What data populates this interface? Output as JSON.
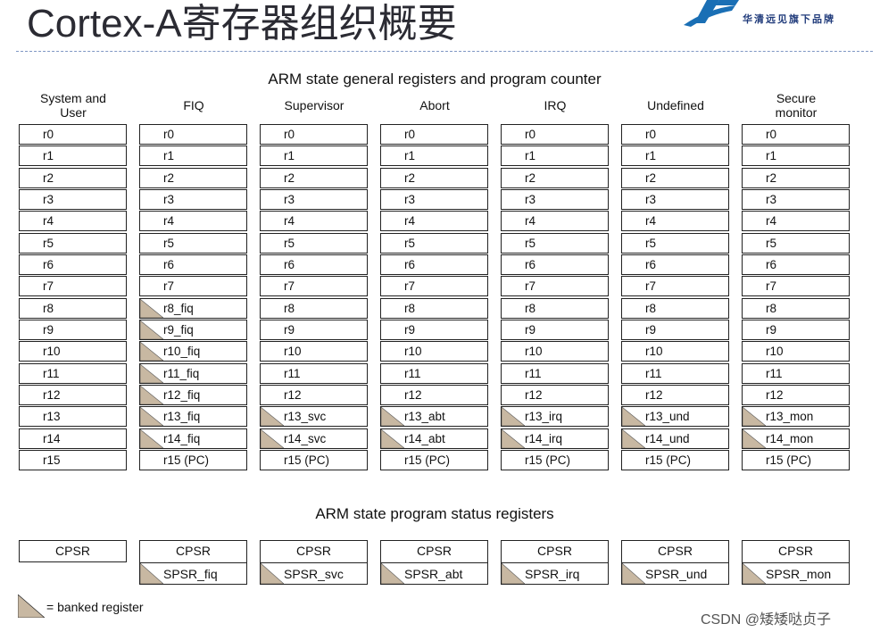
{
  "slide_title": "Cortex-A寄存器组织概要",
  "logo_text": "华清远见旗下品牌",
  "section1_title": "ARM state general registers and program counter",
  "section2_title": "ARM state program status registers",
  "legend_text": "= banked register",
  "watermark": "CSDN @矮矮哒贞子",
  "colors": {
    "banked_fill": "#c8b8a2",
    "border": "#222222",
    "title": "#2b2b33",
    "logo_blue": "#1a6fb5"
  },
  "modes": [
    {
      "header": [
        "System and",
        "User"
      ],
      "registers": [
        {
          "label": "r0",
          "banked": false
        },
        {
          "label": "r1",
          "banked": false
        },
        {
          "label": "r2",
          "banked": false
        },
        {
          "label": "r3",
          "banked": false
        },
        {
          "label": "r4",
          "banked": false
        },
        {
          "label": "r5",
          "banked": false
        },
        {
          "label": "r6",
          "banked": false
        },
        {
          "label": "r7",
          "banked": false
        },
        {
          "label": "r8",
          "banked": false
        },
        {
          "label": "r9",
          "banked": false
        },
        {
          "label": "r10",
          "banked": false
        },
        {
          "label": "r11",
          "banked": false
        },
        {
          "label": "r12",
          "banked": false
        },
        {
          "label": "r13",
          "banked": false
        },
        {
          "label": "r14",
          "banked": false
        },
        {
          "label": "r15",
          "banked": false
        }
      ],
      "cpsr": "CPSR",
      "spsr": null
    },
    {
      "header": [
        "FIQ"
      ],
      "registers": [
        {
          "label": "r0",
          "banked": false
        },
        {
          "label": "r1",
          "banked": false
        },
        {
          "label": "r2",
          "banked": false
        },
        {
          "label": "r3",
          "banked": false
        },
        {
          "label": "r4",
          "banked": false
        },
        {
          "label": "r5",
          "banked": false
        },
        {
          "label": "r6",
          "banked": false
        },
        {
          "label": "r7",
          "banked": false
        },
        {
          "label": "r8_fiq",
          "banked": true
        },
        {
          "label": "r9_fiq",
          "banked": true
        },
        {
          "label": "r10_fiq",
          "banked": true
        },
        {
          "label": "r11_fiq",
          "banked": true
        },
        {
          "label": "r12_fiq",
          "banked": true
        },
        {
          "label": "r13_fiq",
          "banked": true
        },
        {
          "label": "r14_fiq",
          "banked": true
        },
        {
          "label": "r15 (PC)",
          "banked": false
        }
      ],
      "cpsr": "CPSR",
      "spsr": "SPSR_fiq"
    },
    {
      "header": [
        "Supervisor"
      ],
      "registers": [
        {
          "label": "r0",
          "banked": false
        },
        {
          "label": "r1",
          "banked": false
        },
        {
          "label": "r2",
          "banked": false
        },
        {
          "label": "r3",
          "banked": false
        },
        {
          "label": "r4",
          "banked": false
        },
        {
          "label": "r5",
          "banked": false
        },
        {
          "label": "r6",
          "banked": false
        },
        {
          "label": "r7",
          "banked": false
        },
        {
          "label": "r8",
          "banked": false
        },
        {
          "label": "r9",
          "banked": false
        },
        {
          "label": "r10",
          "banked": false
        },
        {
          "label": "r11",
          "banked": false
        },
        {
          "label": "r12",
          "banked": false
        },
        {
          "label": "r13_svc",
          "banked": true
        },
        {
          "label": "r14_svc",
          "banked": true
        },
        {
          "label": "r15 (PC)",
          "banked": false
        }
      ],
      "cpsr": "CPSR",
      "spsr": "SPSR_svc"
    },
    {
      "header": [
        "Abort"
      ],
      "registers": [
        {
          "label": "r0",
          "banked": false
        },
        {
          "label": "r1",
          "banked": false
        },
        {
          "label": "r2",
          "banked": false
        },
        {
          "label": "r3",
          "banked": false
        },
        {
          "label": "r4",
          "banked": false
        },
        {
          "label": "r5",
          "banked": false
        },
        {
          "label": "r6",
          "banked": false
        },
        {
          "label": "r7",
          "banked": false
        },
        {
          "label": "r8",
          "banked": false
        },
        {
          "label": "r9",
          "banked": false
        },
        {
          "label": "r10",
          "banked": false
        },
        {
          "label": "r11",
          "banked": false
        },
        {
          "label": "r12",
          "banked": false
        },
        {
          "label": "r13_abt",
          "banked": true
        },
        {
          "label": "r14_abt",
          "banked": true
        },
        {
          "label": "r15 (PC)",
          "banked": false
        }
      ],
      "cpsr": "CPSR",
      "spsr": "SPSR_abt"
    },
    {
      "header": [
        "IRQ"
      ],
      "registers": [
        {
          "label": "r0",
          "banked": false
        },
        {
          "label": "r1",
          "banked": false
        },
        {
          "label": "r2",
          "banked": false
        },
        {
          "label": "r3",
          "banked": false
        },
        {
          "label": "r4",
          "banked": false
        },
        {
          "label": "r5",
          "banked": false
        },
        {
          "label": "r6",
          "banked": false
        },
        {
          "label": "r7",
          "banked": false
        },
        {
          "label": "r8",
          "banked": false
        },
        {
          "label": "r9",
          "banked": false
        },
        {
          "label": "r10",
          "banked": false
        },
        {
          "label": "r11",
          "banked": false
        },
        {
          "label": "r12",
          "banked": false
        },
        {
          "label": "r13_irq",
          "banked": true
        },
        {
          "label": "r14_irq",
          "banked": true
        },
        {
          "label": "r15 (PC)",
          "banked": false
        }
      ],
      "cpsr": "CPSR",
      "spsr": "SPSR_irq"
    },
    {
      "header": [
        "Undefined"
      ],
      "registers": [
        {
          "label": "r0",
          "banked": false
        },
        {
          "label": "r1",
          "banked": false
        },
        {
          "label": "r2",
          "banked": false
        },
        {
          "label": "r3",
          "banked": false
        },
        {
          "label": "r4",
          "banked": false
        },
        {
          "label": "r5",
          "banked": false
        },
        {
          "label": "r6",
          "banked": false
        },
        {
          "label": "r7",
          "banked": false
        },
        {
          "label": "r8",
          "banked": false
        },
        {
          "label": "r9",
          "banked": false
        },
        {
          "label": "r10",
          "banked": false
        },
        {
          "label": "r11",
          "banked": false
        },
        {
          "label": "r12",
          "banked": false
        },
        {
          "label": "r13_und",
          "banked": true
        },
        {
          "label": "r14_und",
          "banked": true
        },
        {
          "label": "r15 (PC)",
          "banked": false
        }
      ],
      "cpsr": "CPSR",
      "spsr": "SPSR_und"
    },
    {
      "header": [
        "Secure",
        "monitor"
      ],
      "registers": [
        {
          "label": "r0",
          "banked": false
        },
        {
          "label": "r1",
          "banked": false
        },
        {
          "label": "r2",
          "banked": false
        },
        {
          "label": "r3",
          "banked": false
        },
        {
          "label": "r4",
          "banked": false
        },
        {
          "label": "r5",
          "banked": false
        },
        {
          "label": "r6",
          "banked": false
        },
        {
          "label": "r7",
          "banked": false
        },
        {
          "label": "r8",
          "banked": false
        },
        {
          "label": "r9",
          "banked": false
        },
        {
          "label": "r10",
          "banked": false
        },
        {
          "label": "r11",
          "banked": false
        },
        {
          "label": "r12",
          "banked": false
        },
        {
          "label": "r13_mon",
          "banked": true
        },
        {
          "label": "r14_mon",
          "banked": true
        },
        {
          "label": "r15 (PC)",
          "banked": false
        }
      ],
      "cpsr": "CPSR",
      "spsr": "SPSR_mon"
    }
  ]
}
